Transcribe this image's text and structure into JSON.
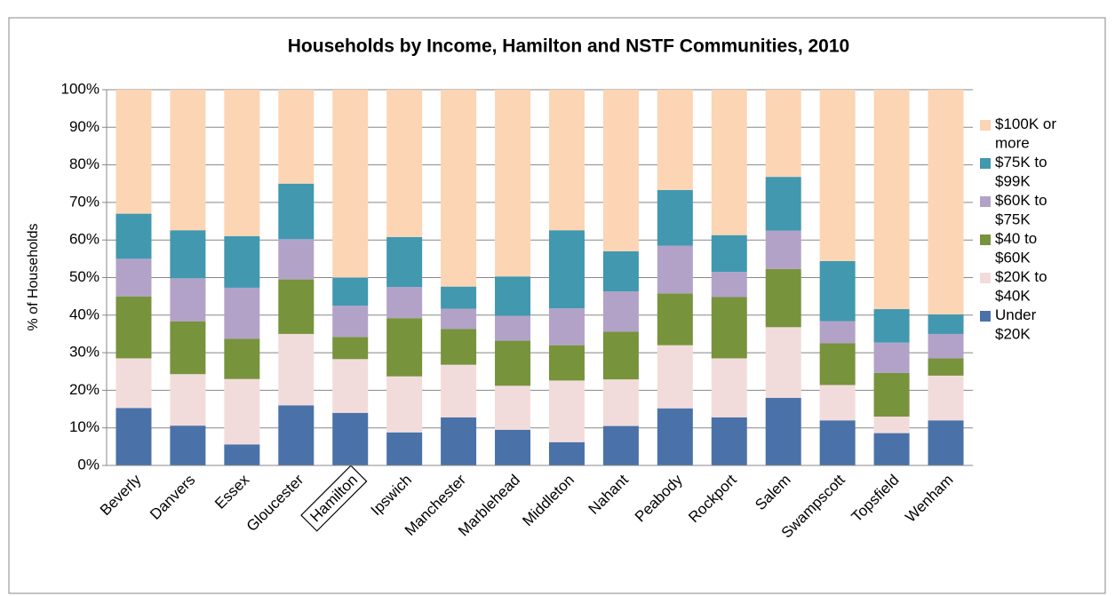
{
  "chart_data": {
    "type": "stacked_bar",
    "title": "Households by Income, Hamilton and NSTF Communities, 2010",
    "y_label": "% of Households",
    "categories": [
      "Beverly",
      "Danvers",
      "Essex",
      "Gloucester",
      "Hamilton",
      "Ipswich",
      "Manchester",
      "Marblehead",
      "Middleton",
      "Nahant",
      "Peabody",
      "Rockport",
      "Salem",
      "Swampscott",
      "Topsfield",
      "Wenham"
    ],
    "series": [
      {
        "name": "Under $20K",
        "color": "#4a72a8",
        "values": [
          15.3,
          10.6,
          5.6,
          16,
          14,
          8.8,
          12.8,
          9.5,
          6.2,
          10.5,
          15.2,
          12.8,
          18,
          12,
          8.6,
          12
        ]
      },
      {
        "name": "$20K to $40K",
        "color": "#f2dcdb",
        "values": [
          13.2,
          13.7,
          17.4,
          19,
          14.3,
          14.9,
          14,
          11.7,
          16.4,
          12.4,
          16.8,
          15.7,
          18.8,
          9.4,
          4.4,
          11.9
        ]
      },
      {
        "name": "$40 to $60K",
        "color": "#77933c",
        "values": [
          16.5,
          14,
          10.7,
          14.5,
          5.9,
          15.5,
          9.5,
          12,
          9.4,
          12.7,
          13.8,
          16.3,
          15.5,
          11.1,
          11.6,
          4.6
        ]
      },
      {
        "name": "$60K to $75K",
        "color": "#b3a2c7",
        "values": [
          10,
          11.5,
          13.6,
          10.7,
          8.3,
          8.3,
          5.4,
          6.6,
          9.8,
          10.7,
          12.7,
          6.7,
          10.2,
          5.9,
          8.1,
          6.5
        ]
      },
      {
        "name": "$75K to $99K",
        "color": "#4198af",
        "values": [
          12,
          12.8,
          13.7,
          14.8,
          7.5,
          13.3,
          5.9,
          10.5,
          20.8,
          10.7,
          14.8,
          9.8,
          14.3,
          16,
          8.9,
          5.2
        ]
      },
      {
        "name": "$100K or more",
        "color": "#fcd5b5",
        "values": [
          33,
          37.4,
          39,
          25,
          50,
          39.2,
          52.4,
          49.7,
          37.4,
          43,
          26.7,
          38.7,
          23.2,
          45.6,
          58.4,
          59.8
        ]
      }
    ],
    "ylim": [
      0,
      100
    ],
    "yticks": [
      {
        "value": 0,
        "label": "0%"
      },
      {
        "value": 10,
        "label": "10%"
      },
      {
        "value": 20,
        "label": "20%"
      },
      {
        "value": 30,
        "label": "30%"
      },
      {
        "value": 40,
        "label": "40%"
      },
      {
        "value": 50,
        "label": "50%"
      },
      {
        "value": 60,
        "label": "60%"
      },
      {
        "value": 70,
        "label": "70%"
      },
      {
        "value": 80,
        "label": "80%"
      },
      {
        "value": 90,
        "label": "90%"
      },
      {
        "value": 100,
        "label": "100%"
      }
    ],
    "grid": true,
    "legend": "right",
    "highlight": 4
  }
}
